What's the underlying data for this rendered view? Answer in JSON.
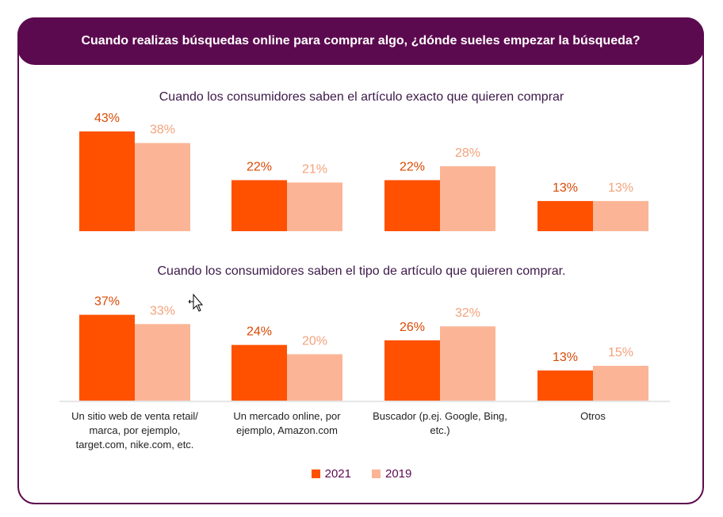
{
  "header": {
    "title": "Cuando realizas búsquedas online para comprar algo, ¿dónde sueles empezar la búsqueda?"
  },
  "colors": {
    "series_2021": "#ff5100",
    "series_2019": "#fbb596",
    "frame": "#5c0a4f"
  },
  "chart_data": [
    {
      "type": "bar",
      "title": "Cuando los consumidores saben el artículo exacto que quieren comprar",
      "categories": [
        "Un sitio web de venta retail/ marca, por ejemplo, target.com, nike.com, etc.",
        "Un mercado online, por ejemplo, Amazon.com",
        "Buscador (p.ej. Google, Bing, etc.)",
        "Otros"
      ],
      "series": [
        {
          "name": "2021",
          "values": [
            43,
            22,
            22,
            13
          ],
          "labels": [
            "43%",
            "22%",
            "22%",
            "13%"
          ]
        },
        {
          "name": "2019",
          "values": [
            38,
            21,
            28,
            13
          ],
          "labels": [
            "38%",
            "21%",
            "28%",
            "13%"
          ]
        }
      ],
      "ylim": [
        0,
        45
      ]
    },
    {
      "type": "bar",
      "title": "Cuando los consumidores saben el tipo de artículo que quieren comprar.",
      "categories": [
        "Un sitio web de venta retail/ marca, por ejemplo, target.com, nike.com, etc.",
        "Un mercado online, por ejemplo, Amazon.com",
        "Buscador (p.ej. Google, Bing, etc.)",
        "Otros"
      ],
      "series": [
        {
          "name": "2021",
          "values": [
            37,
            24,
            26,
            13
          ],
          "labels": [
            "37%",
            "24%",
            "26%",
            "13%"
          ]
        },
        {
          "name": "2019",
          "values": [
            33,
            20,
            32,
            15
          ],
          "labels": [
            "33%",
            "20%",
            "32%",
            "15%"
          ]
        }
      ],
      "ylim": [
        0,
        45
      ]
    }
  ],
  "category_labels": [
    [
      "Un sitio web de venta retail/",
      "marca, por ejemplo,",
      "target.com, nike.com, etc."
    ],
    [
      "Un mercado online, por",
      "ejemplo, Amazon.com"
    ],
    [
      "Buscador (p.ej. Google, Bing,",
      "etc.)"
    ],
    [
      "Otros"
    ]
  ],
  "legend": [
    "2021",
    "2019"
  ]
}
